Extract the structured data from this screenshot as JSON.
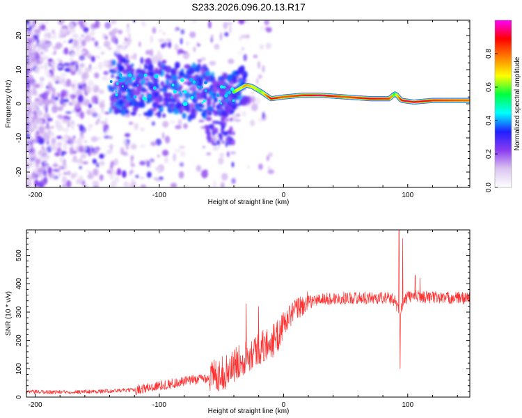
{
  "chart_data": [
    {
      "type": "heatmap",
      "title": "S233.2026.096.20.13.R17",
      "xlabel": "Height of straight line (km)",
      "ylabel": "Frequency (Hz)",
      "xlim": [
        -207,
        150
      ],
      "ylim": [
        -24.5,
        24.5
      ],
      "x_ticks": [
        -200,
        -100,
        0,
        100
      ],
      "y_ticks": [
        -20,
        -10,
        0,
        10,
        20
      ],
      "colorbar": {
        "label": "Normalized spectral amplitude",
        "range": [
          0,
          1
        ],
        "ticks": [
          "0.0",
          "0.2",
          "0.4",
          "0.6",
          "0.8"
        ],
        "tick_values": [
          0.0,
          0.2,
          0.4,
          0.6,
          0.8
        ],
        "colors": [
          "#ffffff",
          "#dcc6f0",
          "#8b3cf0",
          "#1f1fff",
          "#00ffff",
          "#00ff40",
          "#ffff00",
          "#ff8000",
          "#ff0000",
          "#ff00ff"
        ]
      },
      "ridge": {
        "x": [
          -140,
          -120,
          -100,
          -80,
          -60,
          -45,
          -35,
          -30,
          -25,
          -18,
          -10,
          0,
          15,
          30,
          50,
          70,
          85,
          90,
          95,
          105,
          120,
          150
        ],
        "freq": [
          6,
          5,
          4.5,
          3.5,
          3,
          2.5,
          4.5,
          5.5,
          5,
          3.5,
          1.5,
          2,
          2.5,
          2.5,
          2,
          1.5,
          1.5,
          3,
          1,
          0.5,
          1,
          1
        ],
        "amplitude": [
          0.35,
          0.35,
          0.3,
          0.3,
          0.35,
          0.45,
          0.7,
          0.75,
          0.7,
          0.6,
          0.9,
          0.8,
          0.85,
          0.95,
          0.8,
          0.9,
          0.85,
          0.55,
          0.9,
          0.95,
          0.85,
          0.8
        ]
      }
    },
    {
      "type": "line",
      "xlabel": "Height of straight line (km)",
      "ylabel": "SNR (10 * v/v)",
      "xlim": [
        -207,
        150
      ],
      "ylim": [
        0,
        590
      ],
      "x_ticks": [
        -200,
        -100,
        0,
        100
      ],
      "y_ticks": [
        0,
        100,
        200,
        300,
        400,
        500
      ],
      "color": "#ff3030",
      "series": [
        {
          "name": "SNR",
          "x": [
            -207,
            -180,
            -150,
            -120,
            -100,
            -80,
            -60,
            -45,
            -35,
            -25,
            -15,
            -5,
            0,
            10,
            20,
            30,
            50,
            70,
            85,
            90,
            93,
            95,
            100,
            110,
            130,
            150
          ],
          "y": [
            18,
            18,
            20,
            25,
            40,
            55,
            70,
            90,
            130,
            160,
            180,
            210,
            260,
            310,
            335,
            345,
            350,
            350,
            350,
            340,
            300,
            320,
            355,
            355,
            350,
            350
          ],
          "spikes": [
            {
              "x": -30,
              "y": 330
            },
            {
              "x": -20,
              "y": 320
            },
            {
              "x": 5,
              "y": 320
            },
            {
              "x": 93,
              "y": 590
            },
            {
              "x": 94,
              "y": 100
            },
            {
              "x": 96,
              "y": 560
            },
            {
              "x": 106,
              "y": 430
            },
            {
              "x": 110,
              "y": 420
            }
          ]
        }
      ]
    }
  ]
}
